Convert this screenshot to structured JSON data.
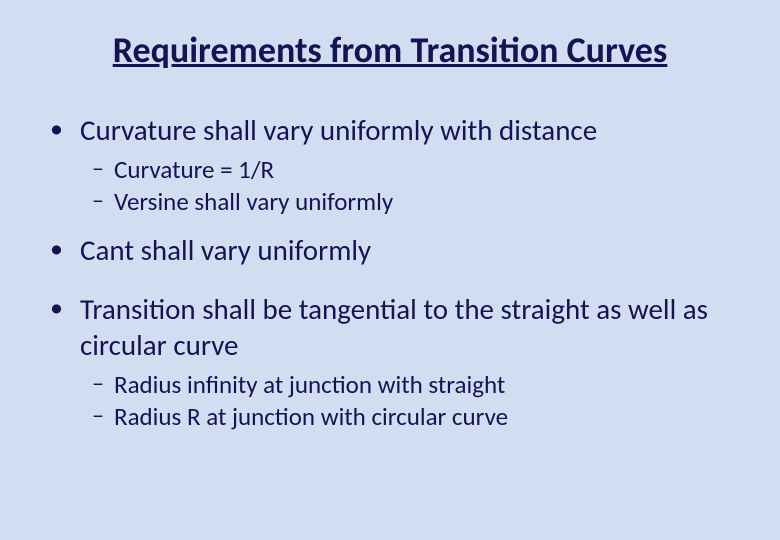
{
  "background_color": "#d2ddf2",
  "text_color": "#141452",
  "title": "Requirements from Transition Curves",
  "title_fontsize": 36,
  "bullet_fontsize": 29,
  "subbullet_fontsize": 25,
  "bullets": [
    {
      "text": "Curvature shall vary uniformly with distance",
      "subs": [
        "Curvature = 1/R",
        "Versine shall vary uniformly"
      ]
    },
    {
      "text": "Cant shall vary uniformly",
      "subs": []
    },
    {
      "text": "Transition shall be tangential to the straight as well as circular curve",
      "subs": [
        "Radius infinity at junction with straight",
        "Radius R at junction with circular curve"
      ]
    }
  ]
}
